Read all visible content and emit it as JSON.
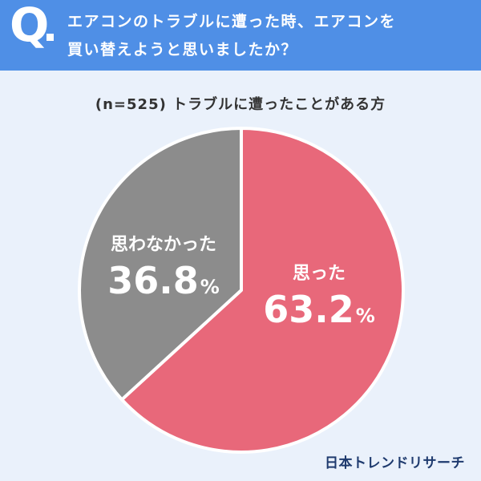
{
  "header": {
    "q_mark": "Q",
    "question_line1": "エアコンのトラブルに遭った時、エアコンを",
    "question_line2": "買い替えようと思いましたか？",
    "background_color": "#4f8fe6"
  },
  "sample_label": "(n=525) トラブルに遭ったことがある方",
  "brand": "日本トレンドリサーチ",
  "chart_data": {
    "type": "pie",
    "title": "エアコンのトラブルに遭った時、エアコンを買い替えようと思いましたか？",
    "subtitle": "(n=525) トラブルに遭ったことがある方",
    "slices": [
      {
        "label": "思った",
        "value": 63.2,
        "display": "63.2",
        "unit": "%",
        "color": "#e8687a"
      },
      {
        "label": "思わなかった",
        "value": 36.8,
        "display": "36.8",
        "unit": "%",
        "color": "#8c8c8c"
      }
    ],
    "start_angle": "12 o'clock",
    "direction": "clockwise"
  }
}
